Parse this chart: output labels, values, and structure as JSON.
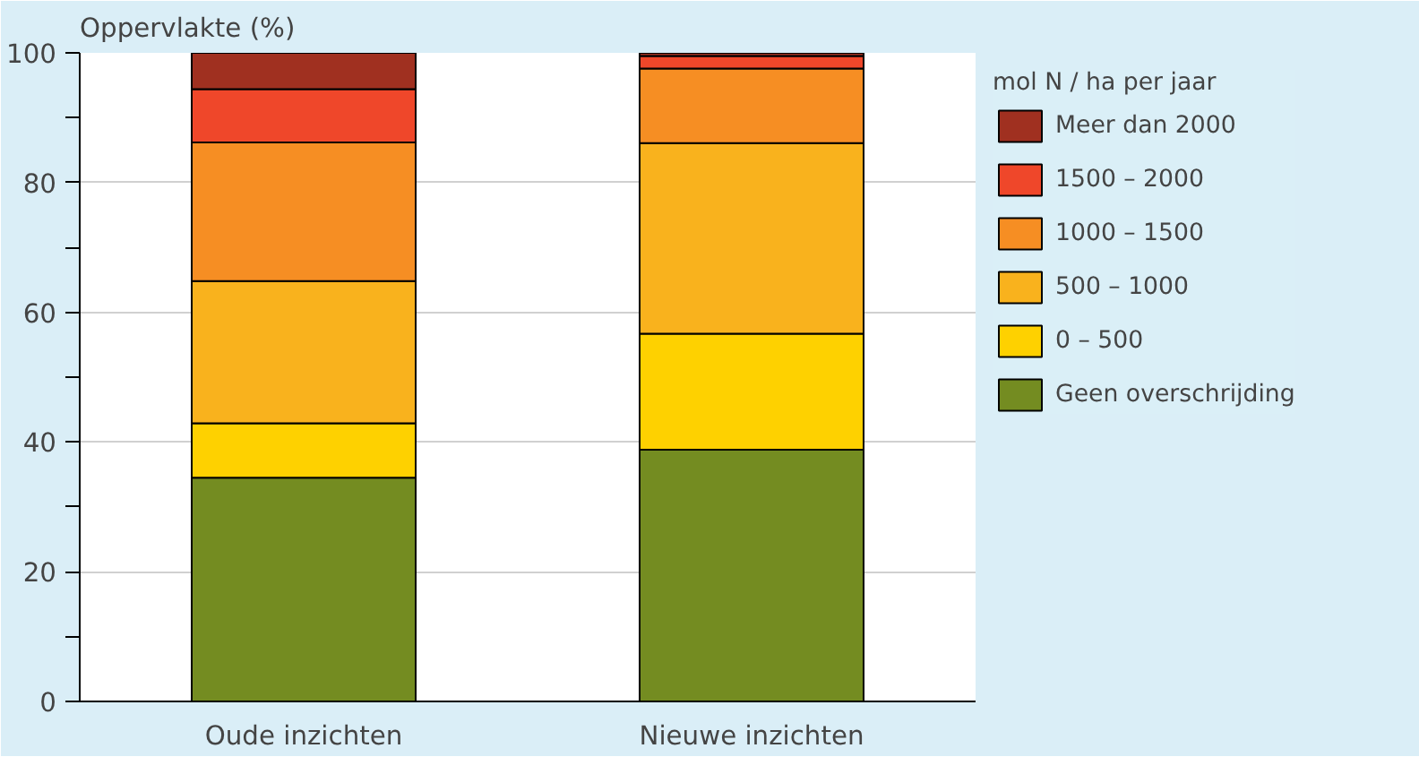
{
  "chart_data": {
    "type": "bar",
    "stacked": true,
    "ylabel": "Oppervlakte (%)",
    "legend_title": "mol N / ha per jaar",
    "categories": [
      "Oude inzichten",
      "Nieuwe inzichten"
    ],
    "series": [
      {
        "name": "Geen overschrijding",
        "color": "#748c21",
        "values": [
          34.5,
          38.8
        ]
      },
      {
        "name": "0 – 500",
        "color": "#fed100",
        "values": [
          8.4,
          17.9
        ]
      },
      {
        "name": "500 – 1000",
        "color": "#f9b21d",
        "values": [
          21.9,
          29.4
        ]
      },
      {
        "name": "1000 – 1500",
        "color": "#f68e23",
        "values": [
          21.4,
          11.5
        ]
      },
      {
        "name": "1500 – 2000",
        "color": "#ef472a",
        "values": [
          8.2,
          1.9
        ]
      },
      {
        "name": "Meer dan 2000",
        "color": "#a03020",
        "values": [
          5.6,
          0.5
        ]
      }
    ],
    "ylim": [
      0,
      100
    ],
    "yticks": [
      0,
      {
        "value": 10,
        "label": null
      },
      20,
      {
        "value": 30,
        "label": null
      },
      40,
      {
        "value": 50,
        "label": null
      },
      60,
      {
        "value": 70,
        "label": null
      },
      80,
      {
        "value": 90,
        "label": null
      },
      100
    ],
    "grid": "y",
    "legend": "right"
  }
}
